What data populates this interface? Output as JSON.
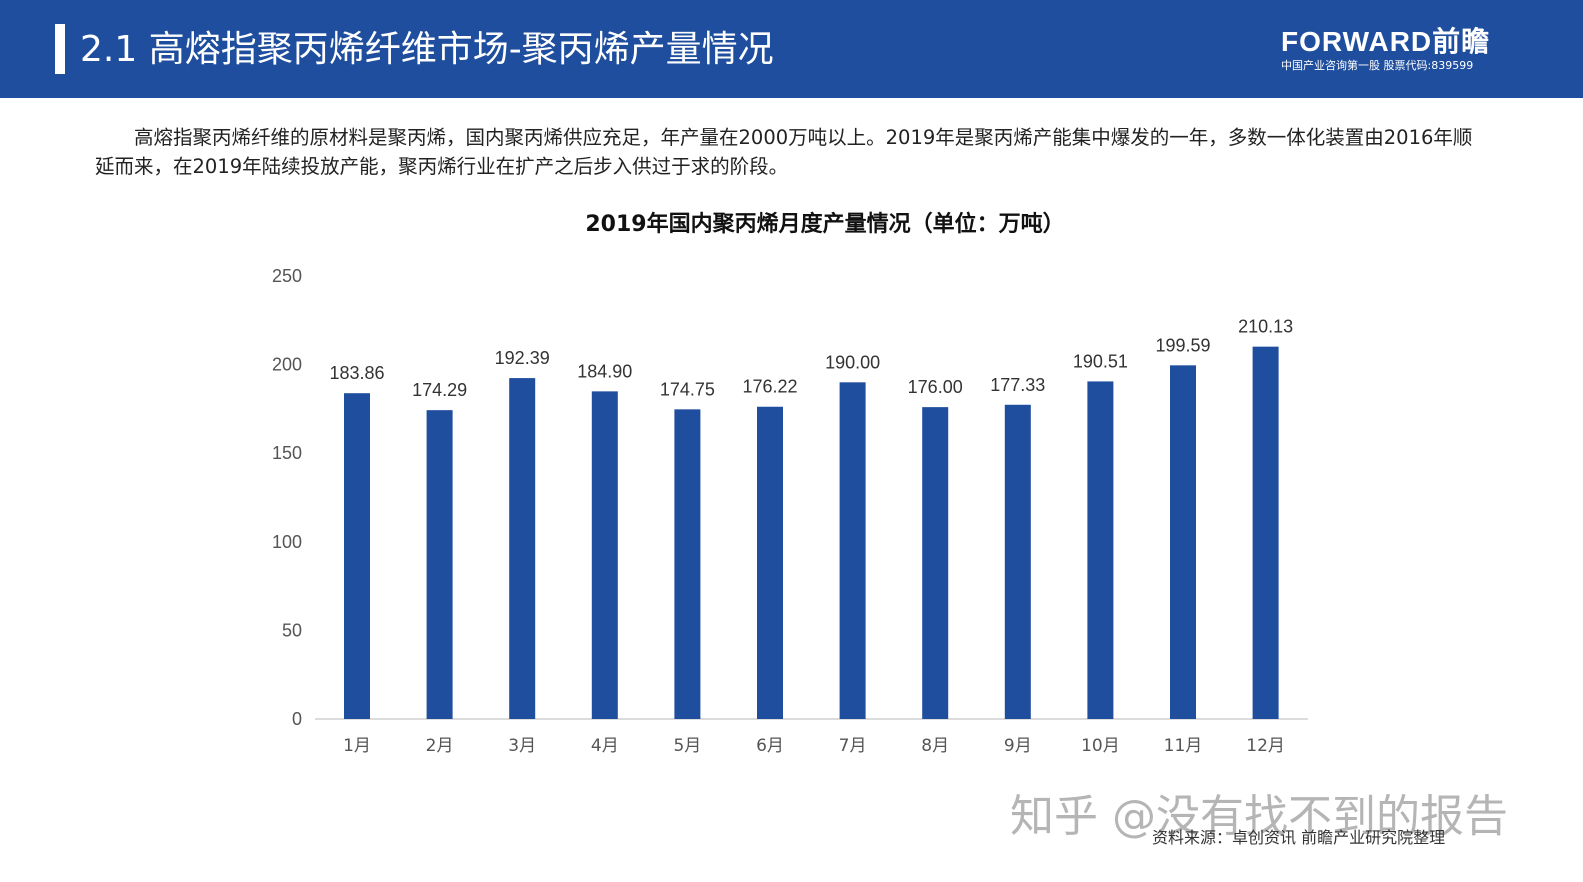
{
  "header": {
    "title": "2.1 高熔指聚丙烯纤维市场-聚丙烯产量情况",
    "logo_main": "FORWARD前瞻",
    "logo_sub": "中国产业咨询第一股  股票代码:839599"
  },
  "intro_text": "高熔指聚丙烯纤维的原材料是聚丙烯，国内聚丙烯供应充足，年产量在2000万吨以上。2019年是聚丙烯产能集中爆发的一年，多数一体化装置由2016年顺延而来，在2019年陆续投放产能，聚丙烯行业在扩产之后步入供过于求的阶段。",
  "watermark": "知乎 @没有找不到的报告",
  "source": "资料来源：卓创资讯 前瞻产业研究院整理",
  "colors": {
    "header_bg": "#1f4e9e",
    "bar": "#1f4e9e"
  },
  "chart_data": {
    "type": "bar",
    "title": "2019年国内聚丙烯月度产量情况（单位：万吨）",
    "categories": [
      "1月",
      "2月",
      "3月",
      "4月",
      "5月",
      "6月",
      "7月",
      "8月",
      "9月",
      "10月",
      "11月",
      "12月"
    ],
    "values": [
      183.86,
      174.29,
      192.39,
      184.9,
      174.75,
      176.22,
      190.0,
      176.0,
      177.33,
      190.51,
      199.59,
      210.13
    ],
    "value_labels": [
      "183.86",
      "174.29",
      "192.39",
      "184.90",
      "174.75",
      "176.22",
      "190.00",
      "176.00",
      "177.33",
      "190.51",
      "199.59",
      "210.13"
    ],
    "y_ticks": [
      "0",
      "50",
      "100",
      "150",
      "200",
      "250"
    ],
    "ylim": [
      0,
      250
    ],
    "grid": false,
    "legend": "none"
  }
}
